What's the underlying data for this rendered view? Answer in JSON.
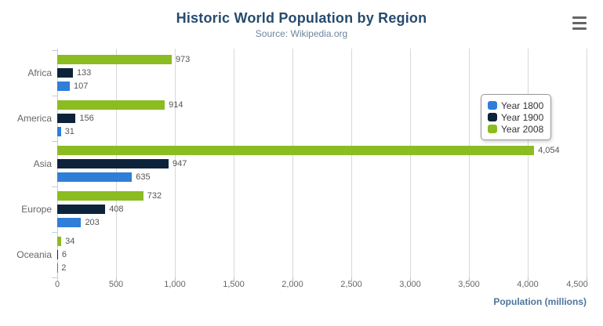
{
  "header": {
    "title": "Historic World Population by Region",
    "subtitle": "Source: Wikipedia.org"
  },
  "export_menu": {
    "icon": "hamburger-menu-icon"
  },
  "chart_data": {
    "type": "bar",
    "orientation": "horizontal",
    "title": "Historic World Population by Region",
    "subtitle": "Source: Wikipedia.org",
    "categories": [
      "Africa",
      "America",
      "Asia",
      "Europe",
      "Oceania"
    ],
    "series": [
      {
        "name": "Year 1800",
        "color": "#2f7ed8",
        "values": [
          107,
          31,
          635,
          203,
          2
        ]
      },
      {
        "name": "Year 1900",
        "color": "#0d233a",
        "values": [
          133,
          156,
          947,
          408,
          6
        ]
      },
      {
        "name": "Year 2008",
        "color": "#8bbc21",
        "values": [
          973,
          914,
          4054,
          732,
          34
        ]
      }
    ],
    "bar_order_top_to_bottom": [
      "Year 2008",
      "Year 1900",
      "Year 1800"
    ],
    "data_labels_visible": true,
    "xlabel": "Population (millions)",
    "ylabel": "",
    "xlim": [
      0,
      4500
    ],
    "x_ticks": [
      "0",
      "500",
      "1,000",
      "1,500",
      "2,000",
      "2,500",
      "3,000",
      "3,500",
      "4,000",
      "4,500"
    ],
    "grid": true,
    "legend_position": "right"
  },
  "colors": {
    "title": "#274b6d",
    "subtitle": "#6d869f",
    "axis_title": "#4d759e",
    "tick_label": "#666666",
    "data_label": "#555555",
    "gridline": "#d8d8d8",
    "axis_line": "#c0d0e0",
    "legend_border": "#999999",
    "legend_text": "#333333",
    "menu_icon": "#666666"
  }
}
